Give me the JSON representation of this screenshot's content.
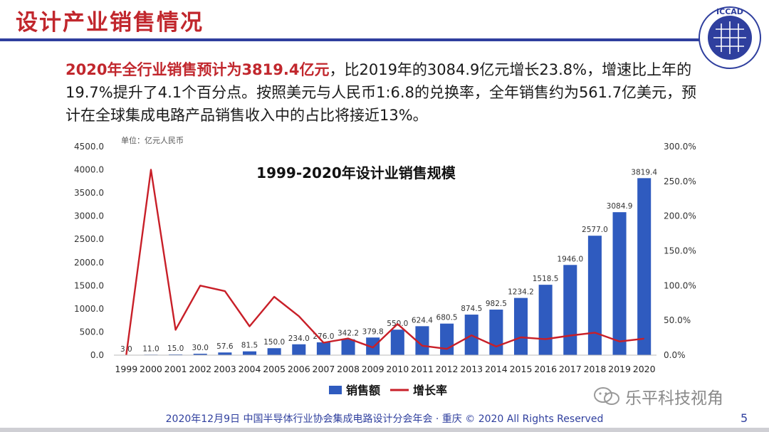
{
  "slide": {
    "title": "设计产业销售情况",
    "logo_text": "ICCAD",
    "logo_subtext": "中国半导体行业协会集成电路设计分会",
    "summary_highlight": "2020年全行业销售预计为3819.4亿元",
    "summary_rest": "，比2019年的3084.9亿元增长23.8%，增速比上年的19.7%提升了4.1个百分点。按照美元与人民币1:6.8的兑换率，全年销售约为561.7亿美元，预计在全球集成电路产品销售收入中的占比将接近13%。",
    "footer": "2020年12月9日  中国半导体行业协会集成电路设计分会年会 · 重庆 © 2020 All Rights Reserved",
    "page_number": "5",
    "watermark": "乐平科技视角",
    "colors": {
      "title": "#c1272d",
      "rule": "#2f3f9e",
      "bar": "#2f5bbf",
      "line": "#c81f28"
    }
  },
  "chart_data": {
    "type": "bar",
    "title": "1999-2020年设计业销售规模",
    "unit_label": "单位：亿元人民币",
    "categories": [
      "1999",
      "2000",
      "2001",
      "2002",
      "2003",
      "2004",
      "2005",
      "2006",
      "2007",
      "2008",
      "2009",
      "2010",
      "2011",
      "2012",
      "2013",
      "2014",
      "2015",
      "2016",
      "2017",
      "2018",
      "2019",
      "2020"
    ],
    "series": [
      {
        "name": "销售额",
        "type": "bar",
        "axis": "left",
        "values": [
          3.0,
          11.0,
          15.0,
          30.0,
          57.6,
          81.5,
          150.0,
          234.0,
          276.0,
          342.2,
          379.8,
          550.0,
          624.4,
          680.5,
          874.5,
          982.5,
          1234.2,
          1518.5,
          1946.0,
          2577.0,
          3084.9,
          3819.4
        ],
        "labels": [
          "3.0",
          "11.0",
          "15.0",
          "30.0",
          "57.6",
          "81.5",
          "150.0",
          "234.0",
          "276.0",
          "342.2",
          "379.8",
          "550.0",
          "624.4",
          "680.5",
          "874.5",
          "982.5",
          "1234.2",
          "1518.5",
          "1946.0",
          "2577.0",
          "3084.9",
          "3819.4"
        ]
      },
      {
        "name": "增长率",
        "type": "line",
        "axis": "right",
        "values": [
          0.0,
          266.7,
          36.4,
          100.0,
          92.0,
          41.5,
          84.0,
          56.0,
          17.9,
          24.0,
          11.0,
          44.8,
          13.5,
          9.0,
          28.5,
          12.4,
          25.6,
          23.0,
          28.2,
          32.4,
          19.7,
          23.8
        ]
      }
    ],
    "y_left": {
      "min": 0,
      "max": 4500,
      "ticks": [
        "0.0",
        "500.0",
        "1000.0",
        "1500.0",
        "2000.0",
        "2500.0",
        "3000.0",
        "3500.0",
        "4000.0",
        "4500.0"
      ]
    },
    "y_right": {
      "min": 0,
      "max": 300,
      "ticks": [
        "0.0%",
        "50.0%",
        "100.0%",
        "150.0%",
        "200.0%",
        "250.0%",
        "300.0%"
      ]
    },
    "legend_position": "bottom",
    "grid": false
  }
}
